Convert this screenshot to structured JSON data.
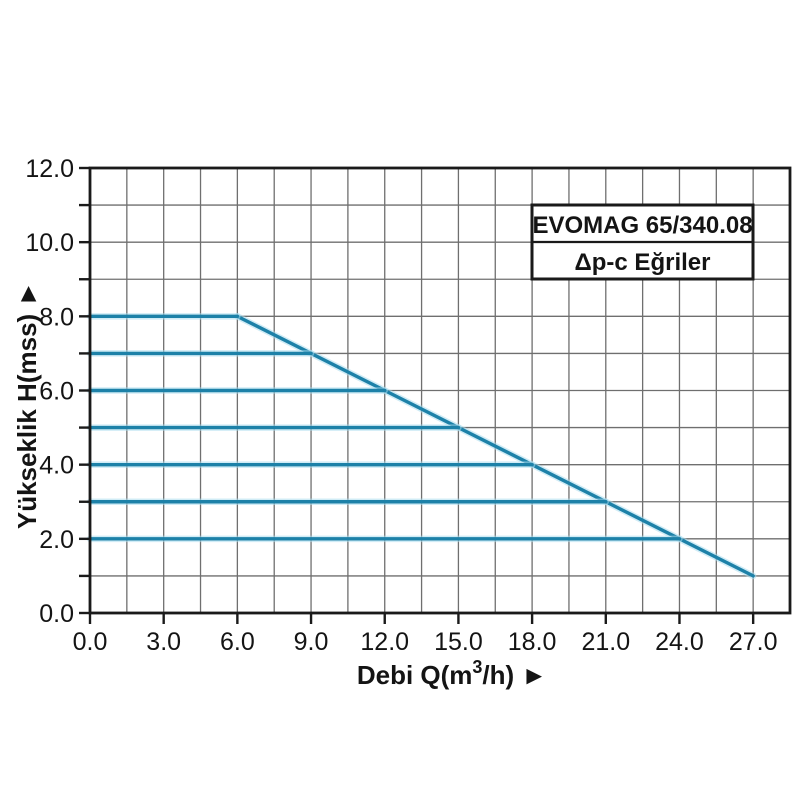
{
  "page": {
    "background": "#ffffff"
  },
  "chart_data": {
    "type": "line",
    "title_box": {
      "line1": "EVOMAG 65/340.08",
      "line2": "Δp-c Eğriler"
    },
    "x_axis": {
      "label_parts": {
        "pre": "Debi Q(m",
        "sup": "3",
        "post": "/h) ►"
      },
      "range": [
        0,
        28.5
      ],
      "grid_step": 1.5,
      "major_ticks": [
        0,
        3,
        6,
        9,
        12,
        15,
        18,
        21,
        24,
        27
      ],
      "tick_labels": [
        "0.0",
        "3.0",
        "6.0",
        "9.0",
        "12.0",
        "15.0",
        "18.0",
        "21.0",
        "24.0",
        "27.0"
      ]
    },
    "y_axis": {
      "label": "Yükseklik H(mss) ►",
      "range": [
        0,
        12
      ],
      "grid_step": 1,
      "labeled_ticks": [
        0,
        2,
        4,
        6,
        8,
        10,
        12
      ],
      "tick_labels": [
        "0.0",
        "2.0",
        "4.0",
        "6.0",
        "8.0",
        "10.0",
        "12.0"
      ]
    },
    "grid": true,
    "legend_position": "none",
    "series": [
      {
        "name": "max-speed-curve",
        "points": [
          [
            6,
            8
          ],
          [
            27,
            1
          ]
        ]
      },
      {
        "name": "dp-c-curve-H8",
        "points": [
          [
            0,
            8
          ],
          [
            6,
            8
          ]
        ]
      },
      {
        "name": "dp-c-curve-H7",
        "points": [
          [
            0,
            7
          ],
          [
            9,
            7
          ]
        ]
      },
      {
        "name": "dp-c-curve-H6",
        "points": [
          [
            0,
            6
          ],
          [
            12,
            6
          ]
        ]
      },
      {
        "name": "dp-c-curve-H5",
        "points": [
          [
            0,
            5
          ],
          [
            15,
            5
          ]
        ]
      },
      {
        "name": "dp-c-curve-H4",
        "points": [
          [
            0,
            4
          ],
          [
            18,
            4
          ]
        ]
      },
      {
        "name": "dp-c-curve-H3",
        "points": [
          [
            0,
            3
          ],
          [
            21,
            3
          ]
        ]
      },
      {
        "name": "dp-c-curve-H2",
        "points": [
          [
            0,
            2
          ],
          [
            24,
            2
          ]
        ]
      }
    ],
    "title_box_placement": {
      "x_data": [
        18,
        27
      ],
      "y_data": [
        9,
        11
      ],
      "divider_y": 10
    },
    "colors": {
      "curve": "#1d81a8",
      "curve_halo": "#aadcee",
      "grid": "#6f6f6f",
      "axis": "#1a1a1a",
      "text": "#141414",
      "box_fill": "#ffffff",
      "box_border": "#1a1a1a"
    }
  }
}
